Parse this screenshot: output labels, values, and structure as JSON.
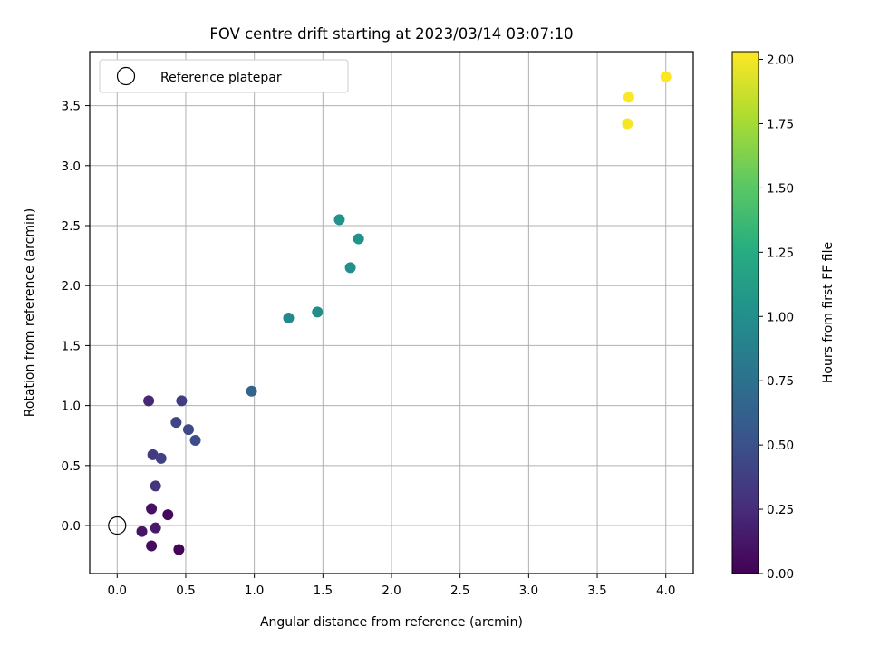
{
  "chart_data": {
    "type": "scatter",
    "title": "FOV centre drift starting at 2023/03/14 03:07:10",
    "xlabel": "Angular distance from reference (arcmin)",
    "ylabel": "Rotation from reference (arcmin)",
    "xlim": [
      -0.2,
      4.2
    ],
    "ylim": [
      -0.4,
      3.95
    ],
    "xticks": [
      "0.0",
      "0.5",
      "1.0",
      "1.5",
      "2.0",
      "2.5",
      "3.0",
      "3.5",
      "4.0"
    ],
    "yticks": [
      "0.0",
      "0.5",
      "1.0",
      "1.5",
      "2.0",
      "2.5",
      "3.0",
      "3.5"
    ],
    "grid": true,
    "legend": {
      "position": "top-left",
      "label": "Reference platepar"
    },
    "reference_point": {
      "x": 0.0,
      "y": 0.0
    },
    "colorbar": {
      "label": "Hours from first FF file",
      "range": [
        0.0,
        2.03
      ],
      "ticks": [
        "0.00",
        "0.25",
        "0.50",
        "0.75",
        "1.00",
        "1.25",
        "1.50",
        "1.75",
        "2.00"
      ],
      "colormap": "viridis"
    },
    "points": [
      {
        "x": 0.45,
        "y": -0.2,
        "hours": 0.02
      },
      {
        "x": 0.25,
        "y": -0.17,
        "hours": 0.06
      },
      {
        "x": 0.37,
        "y": 0.09,
        "hours": 0.05
      },
      {
        "x": 0.18,
        "y": -0.05,
        "hours": 0.12
      },
      {
        "x": 0.28,
        "y": -0.02,
        "hours": 0.15
      },
      {
        "x": 0.25,
        "y": 0.14,
        "hours": 0.1
      },
      {
        "x": 0.28,
        "y": 0.33,
        "hours": 0.3
      },
      {
        "x": 0.26,
        "y": 0.59,
        "hours": 0.34
      },
      {
        "x": 0.32,
        "y": 0.56,
        "hours": 0.4
      },
      {
        "x": 0.23,
        "y": 1.04,
        "hours": 0.22
      },
      {
        "x": 0.47,
        "y": 1.04,
        "hours": 0.38
      },
      {
        "x": 0.43,
        "y": 0.86,
        "hours": 0.42
      },
      {
        "x": 0.52,
        "y": 0.8,
        "hours": 0.45
      },
      {
        "x": 0.57,
        "y": 0.71,
        "hours": 0.48
      },
      {
        "x": 0.98,
        "y": 1.12,
        "hours": 0.66
      },
      {
        "x": 1.25,
        "y": 1.73,
        "hours": 0.95
      },
      {
        "x": 1.46,
        "y": 1.78,
        "hours": 0.98
      },
      {
        "x": 1.62,
        "y": 2.55,
        "hours": 1.03
      },
      {
        "x": 1.7,
        "y": 2.15,
        "hours": 1.01
      },
      {
        "x": 1.76,
        "y": 2.39,
        "hours": 1.02
      },
      {
        "x": 3.72,
        "y": 3.35,
        "hours": 2.01
      },
      {
        "x": 3.73,
        "y": 3.57,
        "hours": 2.02
      },
      {
        "x": 4.0,
        "y": 3.74,
        "hours": 2.03
      }
    ]
  }
}
